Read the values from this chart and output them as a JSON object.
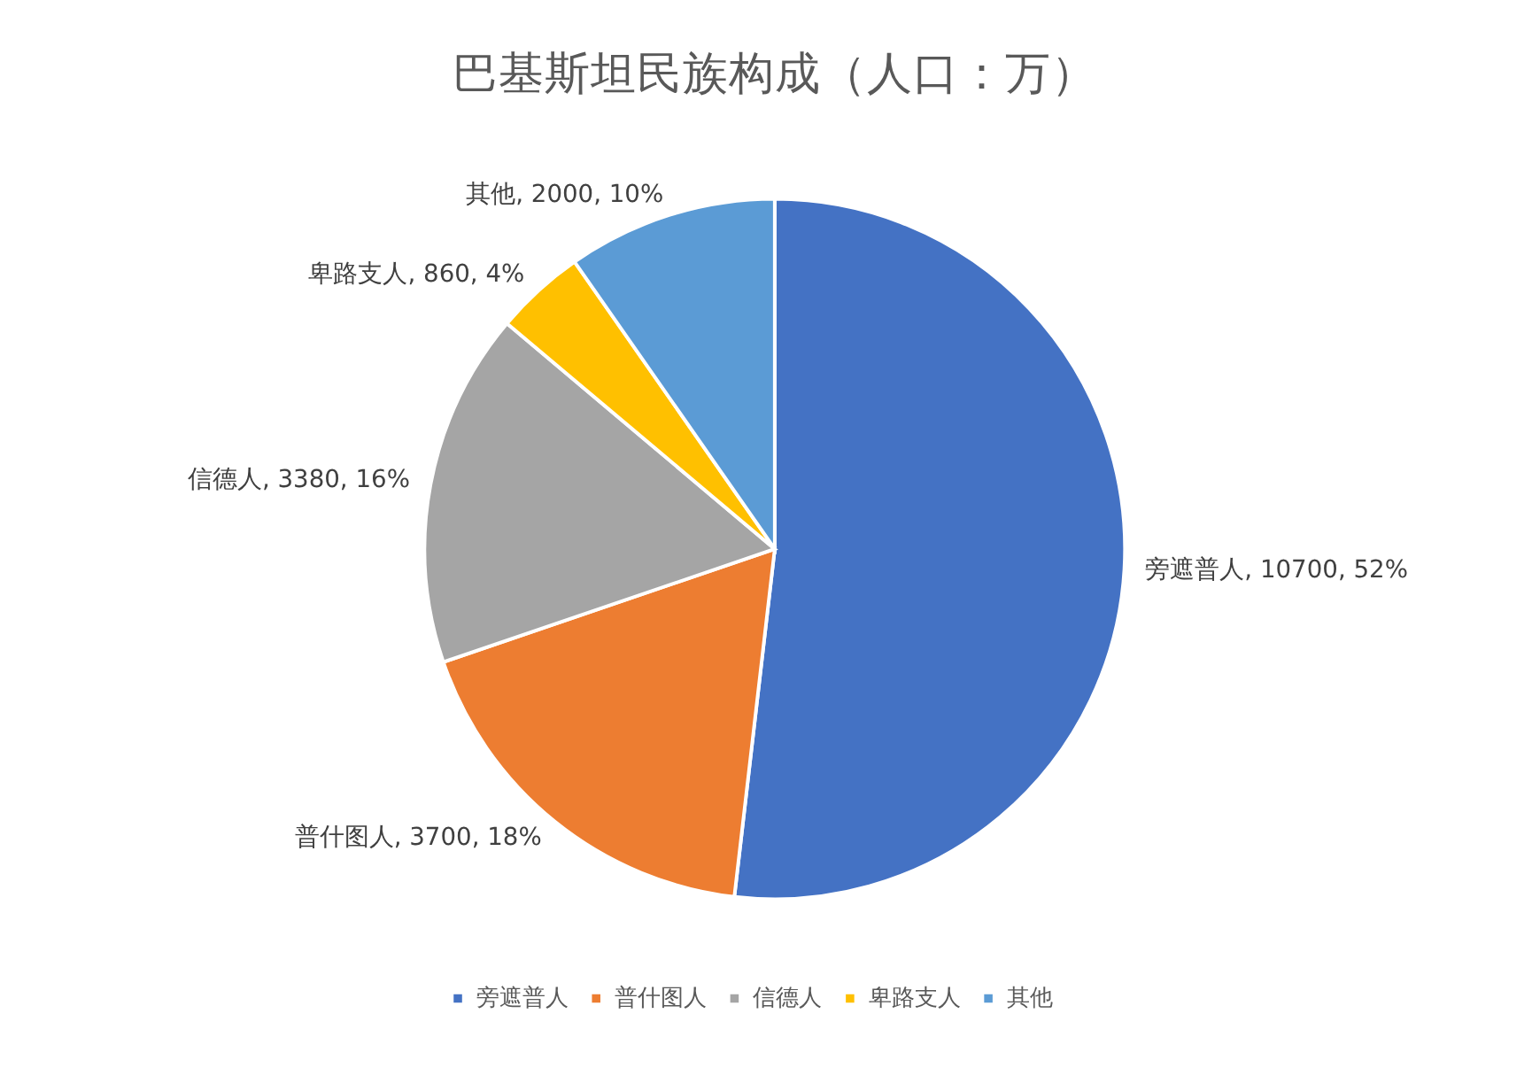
{
  "chart_data": {
    "type": "pie",
    "title": "巴基斯坦民族构成（人口：万）",
    "categories": [
      "旁遮普人",
      "普什图人",
      "信德人",
      "卑路支人",
      "其他"
    ],
    "values": [
      10700,
      3700,
      3380,
      860,
      2000
    ],
    "colors": [
      "#4472c4",
      "#ed7d31",
      "#a5a5a5",
      "#ffc000",
      "#5b9bd5"
    ],
    "value_labels": [
      "旁遮普人, 10700, 52%",
      "普什图人, 3700, 18%",
      "信德人, 3380, 16%",
      "卑路支人, 860, 4%",
      "其他, 2000, 10%"
    ],
    "legend": "bottom"
  }
}
